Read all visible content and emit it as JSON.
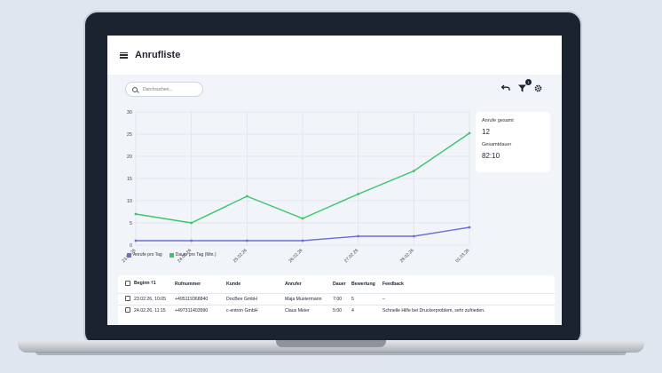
{
  "header": {
    "title": "Anrufliste"
  },
  "search": {
    "placeholder": "Durchsuchen..."
  },
  "toolbar": {
    "filter_badge": "1",
    "undo_icon": "undo-icon",
    "filter_icon": "filter-icon",
    "settings_icon": "gear-icon"
  },
  "stats": {
    "calls_label": "Anrufe gesamt",
    "calls_value": "12",
    "duration_label": "Gesamtdauer",
    "duration_value": "82:10"
  },
  "chart_data": {
    "type": "line",
    "categories": [
      "23.02.26",
      "24.02.26",
      "25.02.26",
      "26.02.26",
      "27.02.26",
      "28.02.26",
      "01.03.26"
    ],
    "ylim": [
      0,
      30
    ],
    "yticks": [
      0,
      5,
      10,
      15,
      20,
      25,
      30
    ],
    "grid": true,
    "legend": "bottom-left",
    "series": [
      {
        "name": "Anrufe pro Tag",
        "color": "#6b6fd4",
        "values": [
          1,
          1,
          1,
          1,
          2,
          2,
          4
        ]
      },
      {
        "name": "Dauer pro Tag (Min.)",
        "color": "#3cc46a",
        "values": [
          7,
          5,
          11,
          6,
          11.5,
          16.7,
          25.2
        ]
      }
    ]
  },
  "table": {
    "columns": [
      "Beginn",
      "Rufnummer",
      "Kunde",
      "Anrufer",
      "Dauer",
      "Bewertung",
      "Feedback"
    ],
    "sort_indicator": "🡑1",
    "rows": [
      [
        "23.02.26, 10:05",
        "+495119368840",
        "DocBee GmbH",
        "Maja Mustermann",
        "7:00",
        "5",
        "–"
      ],
      [
        "24.02.26, 11:15",
        "+497311403990",
        "c-entron GmbH",
        "Claus Meier",
        "5:00",
        "4",
        "Schnelle Hilfe bei Druckerproblem, sehr zufrieden."
      ]
    ]
  }
}
